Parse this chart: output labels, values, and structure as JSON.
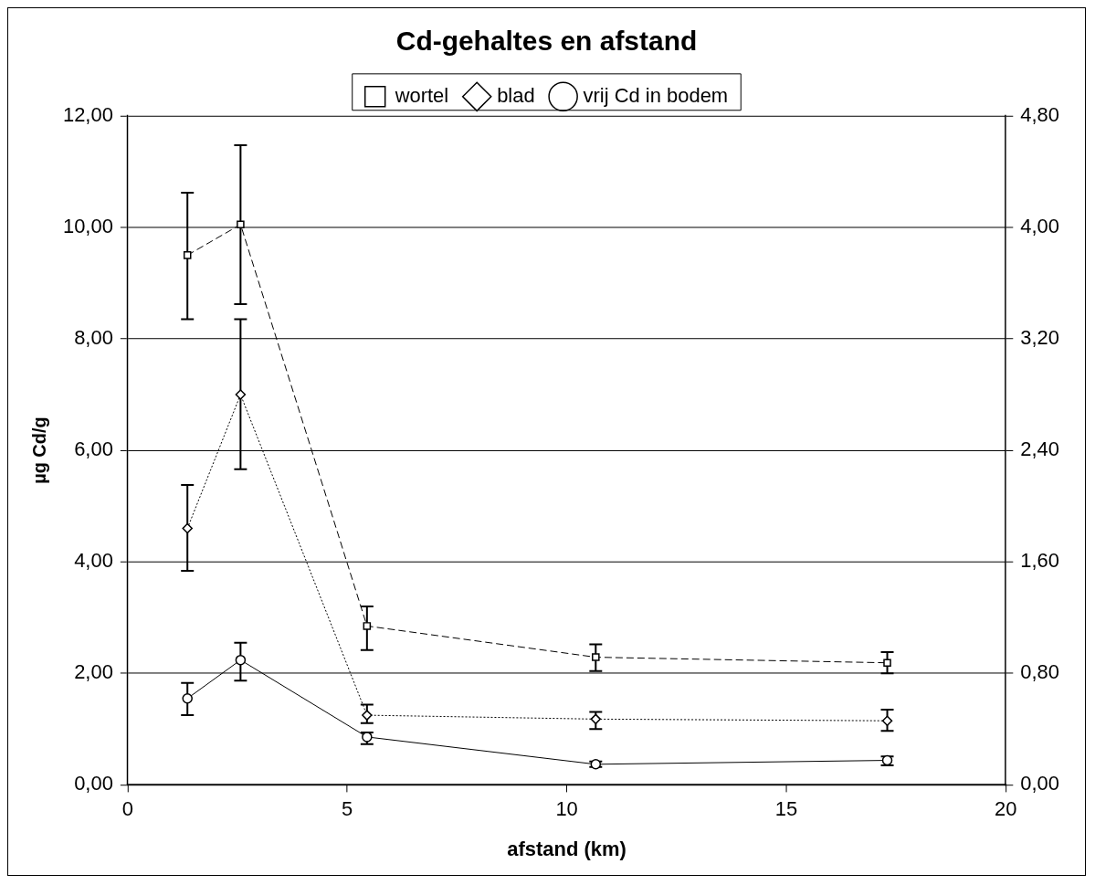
{
  "chart_data": {
    "type": "line",
    "title": "Cd-gehaltes en afstand",
    "xlabel": "afstand (km)",
    "ylabel": "µg Cd/g",
    "xlim": [
      0,
      20
    ],
    "xticks": [
      0,
      5,
      10,
      15,
      20
    ],
    "ylim": [
      0,
      12
    ],
    "yticks": [
      {
        "value": 0,
        "label": "0,00"
      },
      {
        "value": 2,
        "label": "2,00"
      },
      {
        "value": 4,
        "label": "4,00"
      },
      {
        "value": 6,
        "label": "6,00"
      },
      {
        "value": 8,
        "label": "8,00"
      },
      {
        "value": 10,
        "label": "10,00"
      },
      {
        "value": 12,
        "label": "12,00"
      }
    ],
    "y2lim": [
      0,
      4.8
    ],
    "y2ticks": [
      {
        "value": 0,
        "label": "0,00"
      },
      {
        "value": 0.8,
        "label": "0,80"
      },
      {
        "value": 1.6,
        "label": "1,60"
      },
      {
        "value": 2.4,
        "label": "2,40"
      },
      {
        "value": 3.2,
        "label": "3,20"
      },
      {
        "value": 4,
        "label": "4,00"
      },
      {
        "value": 4.8,
        "label": "4,80"
      }
    ],
    "x": [
      1.36,
      2.57,
      5.45,
      10.66,
      17.3
    ],
    "grid": "y",
    "legend": "top",
    "series": [
      {
        "name": "wortel",
        "color": "#000000",
        "marker": "square",
        "line_style": "dashed",
        "values": [
          9.5,
          10.05,
          2.85,
          2.29,
          2.19
        ],
        "errors": [
          [
            8.35,
            10.62
          ],
          [
            8.62,
            11.47
          ],
          [
            2.42,
            3.2
          ],
          [
            2.04,
            2.52
          ],
          [
            2.0,
            2.38
          ]
        ]
      },
      {
        "name": "blad",
        "color": "#000000",
        "marker": "diamond",
        "line_style": "dotted",
        "values": [
          4.6,
          7.0,
          1.25,
          1.18,
          1.15
        ],
        "errors": [
          [
            3.84,
            5.38
          ],
          [
            5.66,
            8.35
          ],
          [
            1.11,
            1.44
          ],
          [
            1.0,
            1.31
          ],
          [
            0.97,
            1.35
          ]
        ]
      },
      {
        "name": "vrij Cd in bodem",
        "color": "#000000",
        "marker": "circle",
        "line_style": "solid",
        "values": [
          1.55,
          2.24,
          0.86,
          0.37,
          0.44
        ],
        "errors": [
          [
            1.25,
            1.83
          ],
          [
            1.87,
            2.55
          ],
          [
            0.73,
            0.94
          ],
          [
            0.32,
            0.42
          ],
          [
            0.35,
            0.51
          ]
        ]
      }
    ]
  }
}
